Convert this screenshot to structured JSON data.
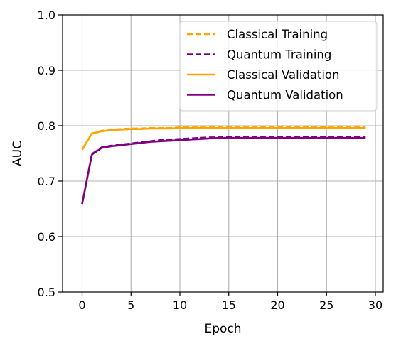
{
  "chart_data": {
    "type": "line",
    "xlabel": "Epoch",
    "ylabel": "AUC",
    "xlim": [
      -2,
      30.8
    ],
    "ylim": [
      0.5,
      1.0
    ],
    "xticks": [
      "0",
      "5",
      "10",
      "15",
      "20",
      "25",
      "30"
    ],
    "yticks": [
      "0.5",
      "0.6",
      "0.7",
      "0.8",
      "0.9",
      "1.0"
    ],
    "grid": true,
    "legend_position": "top-right",
    "x": [
      0,
      1,
      2,
      3,
      4,
      5,
      6,
      7,
      8,
      9,
      10,
      11,
      12,
      13,
      14,
      15,
      16,
      17,
      18,
      19,
      20,
      21,
      22,
      23,
      24,
      25,
      26,
      27,
      28,
      29
    ],
    "series": [
      {
        "name": "Classical Training",
        "color": "#ffa500",
        "style": "dashed",
        "values": [
          0.757,
          0.786,
          0.791,
          0.793,
          0.794,
          0.795,
          0.795,
          0.796,
          0.796,
          0.796,
          0.797,
          0.797,
          0.797,
          0.797,
          0.797,
          0.797,
          0.797,
          0.797,
          0.797,
          0.797,
          0.797,
          0.797,
          0.797,
          0.797,
          0.797,
          0.797,
          0.797,
          0.797,
          0.797,
          0.797
        ]
      },
      {
        "name": "Quantum Training",
        "color": "#800080",
        "style": "dashed",
        "values": [
          0.659,
          0.749,
          0.761,
          0.764,
          0.766,
          0.768,
          0.77,
          0.772,
          0.774,
          0.775,
          0.776,
          0.777,
          0.778,
          0.779,
          0.779,
          0.78,
          0.78,
          0.78,
          0.78,
          0.78,
          0.78,
          0.78,
          0.78,
          0.78,
          0.78,
          0.78,
          0.78,
          0.78,
          0.78,
          0.78
        ]
      },
      {
        "name": "Classical Validation",
        "color": "#ffa500",
        "style": "solid",
        "values": [
          0.757,
          0.786,
          0.79,
          0.792,
          0.793,
          0.794,
          0.794,
          0.795,
          0.795,
          0.795,
          0.796,
          0.796,
          0.796,
          0.796,
          0.796,
          0.796,
          0.796,
          0.796,
          0.796,
          0.796,
          0.796,
          0.796,
          0.796,
          0.796,
          0.796,
          0.796,
          0.796,
          0.796,
          0.796,
          0.796
        ]
      },
      {
        "name": "Quantum Validation",
        "color": "#800080",
        "style": "solid",
        "values": [
          0.659,
          0.748,
          0.76,
          0.763,
          0.765,
          0.767,
          0.769,
          0.771,
          0.772,
          0.773,
          0.774,
          0.775,
          0.776,
          0.777,
          0.778,
          0.778,
          0.778,
          0.778,
          0.778,
          0.778,
          0.778,
          0.778,
          0.778,
          0.778,
          0.778,
          0.778,
          0.778,
          0.778,
          0.778,
          0.778
        ]
      }
    ]
  }
}
